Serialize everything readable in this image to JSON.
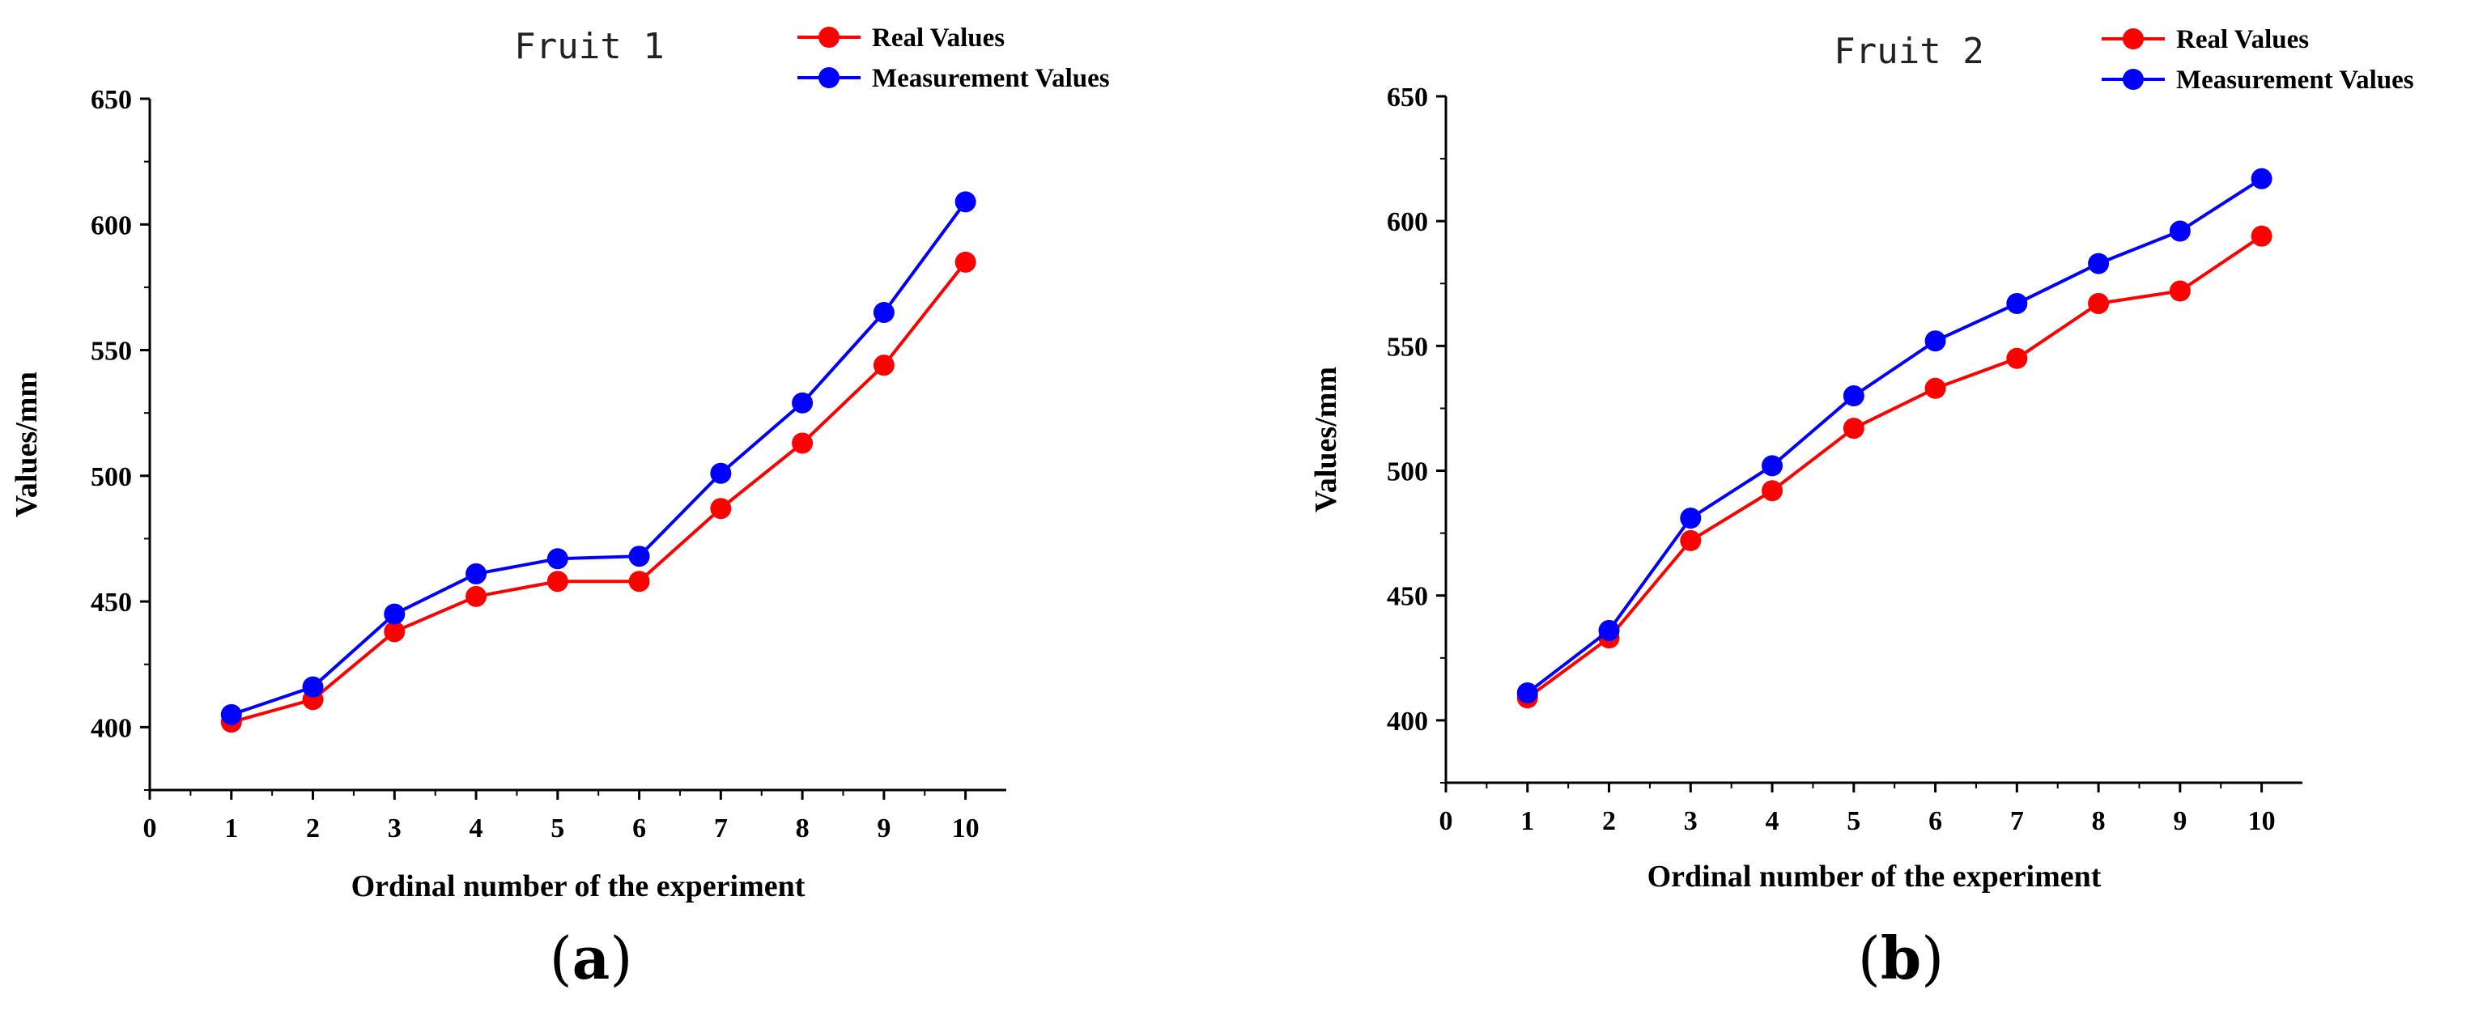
{
  "chart_data": [
    {
      "type": "line",
      "panel_label": "a",
      "title": "Fruit 1",
      "xlabel": "Ordinal number of the experiment",
      "ylabel": "Values/mm",
      "x": [
        1,
        2,
        3,
        4,
        5,
        6,
        7,
        8,
        9,
        10
      ],
      "xlim": [
        0,
        10.5
      ],
      "ylim": [
        375,
        650
      ],
      "xticks": [
        "0",
        "1",
        "2",
        "3",
        "4",
        "5",
        "6",
        "7",
        "8",
        "9",
        "10"
      ],
      "yticks": [
        "400",
        "450",
        "500",
        "550",
        "600",
        "650"
      ],
      "legend_position": "top-right",
      "grid": false,
      "series": [
        {
          "name": "Real Values",
          "color": "#ff0000",
          "values": [
            402,
            411,
            438,
            452,
            458,
            458,
            487,
            513,
            544,
            585
          ]
        },
        {
          "name": "Measurement Values",
          "color": "#0000ff",
          "values": [
            405,
            416,
            445,
            461,
            467,
            468,
            501,
            529,
            565,
            609
          ]
        }
      ]
    },
    {
      "type": "line",
      "panel_label": "b",
      "title": "Fruit 2",
      "xlabel": "Ordinal number of the experiment",
      "ylabel": "Values/mm",
      "x": [
        1,
        2,
        3,
        4,
        5,
        6,
        7,
        8,
        9,
        10
      ],
      "xlim": [
        0,
        10.5
      ],
      "ylim": [
        375,
        650
      ],
      "xticks": [
        "0",
        "1",
        "2",
        "3",
        "4",
        "5",
        "6",
        "7",
        "8",
        "9",
        "10"
      ],
      "yticks": [
        "400",
        "450",
        "500",
        "550",
        "600",
        "650"
      ],
      "legend_position": "top-right",
      "grid": false,
      "series": [
        {
          "name": "Real Values",
          "color": "#ff0000",
          "values": [
            409,
            433,
            472,
            492,
            517,
            533,
            545,
            567,
            572,
            594
          ]
        },
        {
          "name": "Measurement Values",
          "color": "#0000ff",
          "values": [
            411,
            436,
            481,
            502,
            530,
            552,
            567,
            583,
            596,
            617
          ]
        }
      ]
    }
  ]
}
